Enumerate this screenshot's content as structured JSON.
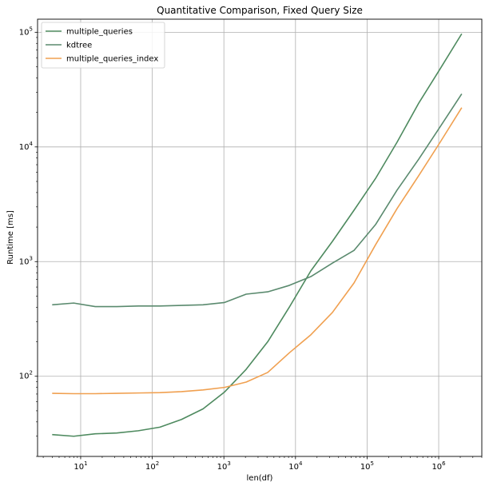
{
  "chart_data": {
    "type": "line",
    "title": "Quantitative Comparison, Fixed Query Size",
    "xlabel": "len(df)",
    "ylabel": "Runtime [ms]",
    "xscale": "log",
    "yscale": "log",
    "xlim": [
      2.5,
      4000000
    ],
    "ylim": [
      20,
      130000
    ],
    "xticks": [
      {
        "value": 10,
        "base": "10",
        "exp": "1"
      },
      {
        "value": 100,
        "base": "10",
        "exp": "2"
      },
      {
        "value": 1000,
        "base": "10",
        "exp": "3"
      },
      {
        "value": 10000,
        "base": "10",
        "exp": "4"
      },
      {
        "value": 100000,
        "base": "10",
        "exp": "5"
      },
      {
        "value": 1000000,
        "base": "10",
        "exp": "6"
      }
    ],
    "yticks": [
      {
        "value": 100,
        "base": "10",
        "exp": "2"
      },
      {
        "value": 1000,
        "base": "10",
        "exp": "3"
      },
      {
        "value": 10000,
        "base": "10",
        "exp": "4"
      },
      {
        "value": 100000,
        "base": "10",
        "exp": "5"
      }
    ],
    "grid": true,
    "legend_position": "upper-left",
    "x": [
      4,
      8,
      16,
      32,
      64,
      128,
      256,
      512,
      1024,
      2048,
      4096,
      8192,
      16384,
      32768,
      65536,
      131072,
      262144,
      524288,
      1048576,
      2097152
    ],
    "series": [
      {
        "name": "multiple_queries",
        "color": "#4e8a5f",
        "values": [
          31,
          30,
          31.5,
          32,
          33.5,
          36,
          42,
          52,
          73,
          115,
          200,
          400,
          830,
          1500,
          2800,
          5300,
          11000,
          24000,
          48000,
          97000
        ]
      },
      {
        "name": "kdtree",
        "color": "#5a8a6e",
        "values": [
          420,
          435,
          405,
          405,
          410,
          410,
          415,
          420,
          440,
          520,
          545,
          620,
          740,
          970,
          1250,
          2100,
          4200,
          7800,
          15000,
          29000
        ]
      },
      {
        "name": "multiple_queries_index",
        "color": "#f0a050",
        "values": [
          71,
          70.5,
          70.5,
          71,
          71.5,
          72,
          73.5,
          76,
          80,
          89,
          108,
          160,
          230,
          360,
          650,
          1400,
          2900,
          5600,
          11000,
          22000
        ]
      }
    ]
  }
}
